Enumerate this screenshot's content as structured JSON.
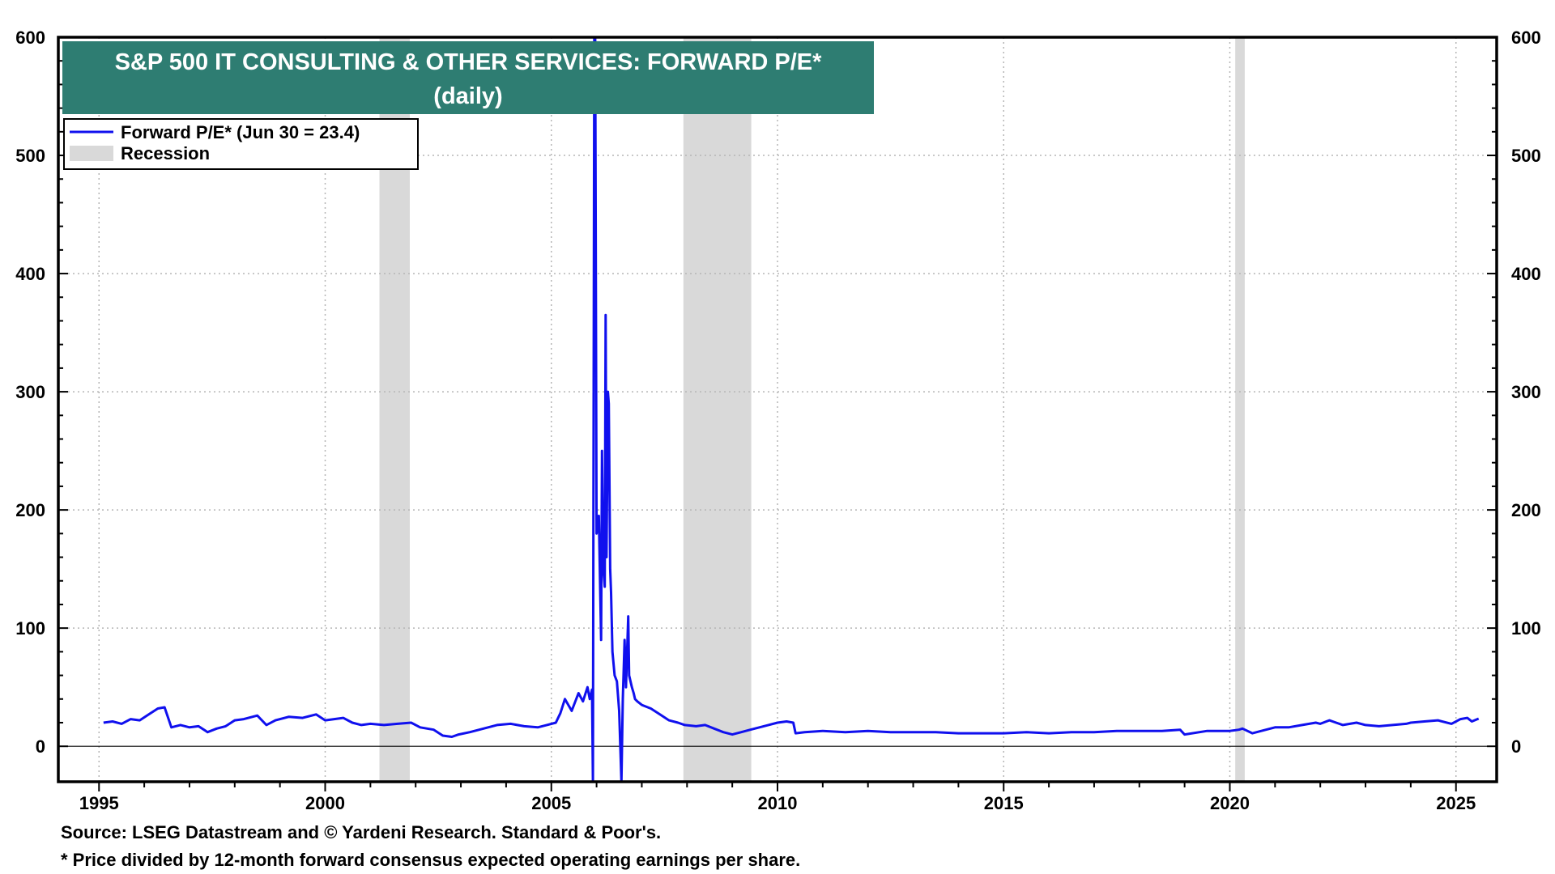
{
  "chart_data": {
    "type": "line",
    "title": "S&P 500 IT CONSULTING & OTHER SERVICES: FORWARD P/E*",
    "subtitle": "(daily)",
    "ylim": [
      -30,
      600
    ],
    "xlim": [
      1994.1,
      2025.9
    ],
    "y_ticks": [
      0,
      100,
      200,
      300,
      400,
      500,
      600
    ],
    "x_ticks": [
      1995,
      2000,
      2005,
      2010,
      2015,
      2020,
      2025
    ],
    "grid": true,
    "legend_placement": "top-left",
    "legend": [
      {
        "label": "Forward P/E* (Jun 30 = 23.4)",
        "kind": "line"
      },
      {
        "label": "Recession",
        "kind": "area"
      }
    ],
    "recessions": [
      [
        2001.2,
        2001.87
      ],
      [
        2007.92,
        2009.42
      ],
      [
        2020.12,
        2020.33
      ]
    ],
    "series": [
      {
        "name": "Forward P/E* (Jun 30 = 23.4)",
        "color": "#1010ee",
        "x": [
          1995.1,
          1995.3,
          1995.5,
          1995.7,
          1995.9,
          1996.1,
          1996.3,
          1996.45,
          1996.6,
          1996.8,
          1997.0,
          1997.2,
          1997.4,
          1997.6,
          1997.8,
          1998.0,
          1998.2,
          1998.5,
          1998.7,
          1998.9,
          1999.2,
          1999.5,
          1999.8,
          2000.0,
          2000.2,
          2000.4,
          2000.6,
          2000.8,
          2001.0,
          2001.3,
          2001.6,
          2001.9,
          2002.1,
          2002.4,
          2002.6,
          2002.8,
          2002.95,
          2003.2,
          2003.5,
          2003.8,
          2004.1,
          2004.4,
          2004.7,
          2004.9,
          2005.1,
          2005.2,
          2005.3,
          2005.45,
          2005.6,
          2005.7,
          2005.8,
          2005.85,
          2005.9,
          2005.92,
          2005.95,
          2005.97,
          2006.0,
          2006.05,
          2006.1,
          2006.12,
          2006.15,
          2006.18,
          2006.2,
          2006.22,
          2006.25,
          2006.27,
          2006.3,
          2006.32,
          2006.35,
          2006.4,
          2006.45,
          2006.5,
          2006.55,
          2006.58,
          2006.62,
          2006.65,
          2006.7,
          2006.72,
          2006.75,
          2006.78,
          2006.82,
          2006.85,
          2006.9,
          2007.0,
          2007.2,
          2007.4,
          2007.6,
          2007.8,
          2007.95,
          2008.2,
          2008.4,
          2008.6,
          2008.8,
          2009.0,
          2009.2,
          2009.4,
          2009.6,
          2009.8,
          2010.0,
          2010.2,
          2010.35,
          2010.4,
          2010.6,
          2011.0,
          2011.5,
          2012.0,
          2012.5,
          2013.0,
          2013.5,
          2014.0,
          2014.5,
          2015.0,
          2015.5,
          2016.0,
          2016.5,
          2017.0,
          2017.5,
          2018.0,
          2018.5,
          2018.9,
          2019.0,
          2019.5,
          2020.0,
          2020.2,
          2020.28,
          2020.5,
          2020.8,
          2021.0,
          2021.3,
          2021.6,
          2021.9,
          2022.0,
          2022.2,
          2022.5,
          2022.8,
          2023.0,
          2023.3,
          2023.6,
          2023.9,
          2024.0,
          2024.3,
          2024.6,
          2024.9,
          2025.1,
          2025.25,
          2025.35,
          2025.5
        ],
        "y": [
          20,
          21,
          19,
          23,
          22,
          27,
          32,
          33,
          16,
          18,
          16,
          17,
          12,
          15,
          17,
          22,
          23,
          26,
          18,
          22,
          25,
          24,
          27,
          22,
          23,
          24,
          20,
          18,
          19,
          18,
          19,
          20,
          16,
          14,
          9,
          8,
          10,
          12,
          15,
          18,
          19,
          17,
          16,
          18,
          20,
          28,
          40,
          30,
          45,
          38,
          50,
          40,
          48,
          -30,
          600,
          600,
          180,
          195,
          90,
          250,
          150,
          135,
          365,
          160,
          300,
          290,
          150,
          130,
          80,
          60,
          55,
          30,
          -30,
          40,
          90,
          50,
          110,
          60,
          55,
          50,
          45,
          40,
          38,
          35,
          32,
          27,
          22,
          20,
          18,
          17,
          18,
          15,
          12,
          10,
          12,
          14,
          16,
          18,
          20,
          21,
          20,
          11,
          12,
          13,
          12,
          13,
          12,
          12,
          12,
          11,
          11,
          11,
          12,
          11,
          12,
          12,
          13,
          13,
          13,
          14,
          10,
          13,
          13,
          14,
          15,
          11,
          14,
          16,
          16,
          18,
          20,
          19,
          22,
          18,
          20,
          18,
          17,
          18,
          19,
          20,
          21,
          22,
          19,
          23,
          24,
          21,
          23.4
        ]
      }
    ]
  },
  "footnotes": {
    "source": "Source: LSEG Datastream and © Yardeni Research. Standard & Poor's.",
    "note": "* Price divided by 12-month forward consensus expected operating earnings per share."
  }
}
